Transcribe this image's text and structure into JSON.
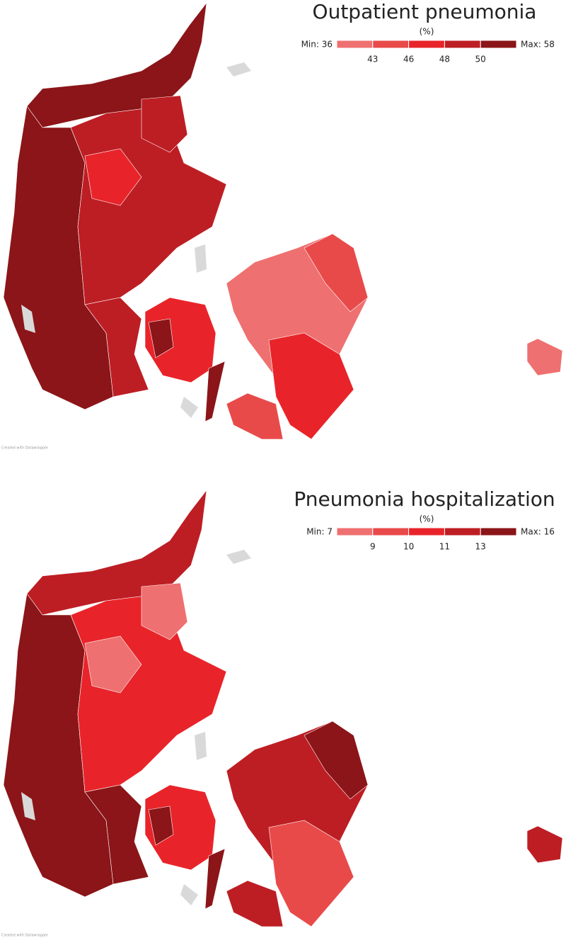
{
  "maps": [
    {
      "title": "Outpatient pneumonia",
      "unit_label": "(%)",
      "min_label": "Min: 36",
      "max_label": "Max: 58",
      "breaks": [
        43,
        46,
        48,
        50
      ],
      "colors": [
        "#ef7070",
        "#e84a4a",
        "#e8242a",
        "#bd1e24",
        "#8b1518"
      ],
      "credit": "Created with Datawrapper"
    },
    {
      "title": "Pneumonia hospitalization",
      "unit_label": "(%)",
      "min_label": "Min: 7",
      "max_label": "Max: 16",
      "breaks": [
        9,
        10,
        11,
        13
      ],
      "colors": [
        "#ef7070",
        "#e84a4a",
        "#e8242a",
        "#bd1e24",
        "#8b1518"
      ],
      "credit": "Created with Datawrapper"
    }
  ]
}
